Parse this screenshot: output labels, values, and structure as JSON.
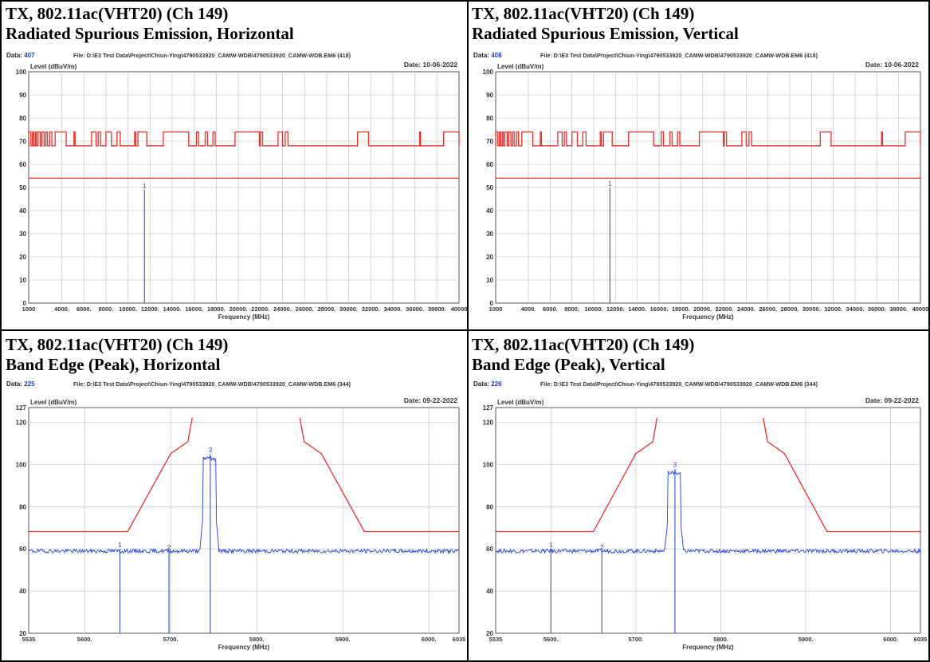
{
  "panels": [
    {
      "title1": "TX, 802.11ac(VHT20) (Ch 149)",
      "title2": "Radiated Spurious Emission, Horizontal",
      "data_no": "407",
      "file": "File: D:\\E3 Test Data\\Project\\Chiun-Ying\\4790533920_CAMW-WDB\\4790533920_CAMW-WDB.EM6 (418)",
      "date": "Date: 10-06-2022"
    },
    {
      "title1": "TX, 802.11ac(VHT20) (Ch 149)",
      "title2": "Radiated Spurious Emission, Vertical",
      "data_no": "408",
      "file": "File: D:\\E3 Test Data\\Project\\Chiun-Ying\\4790533920_CAMW-WDB\\4790533920_CAMW-WDB.EM6 (418)",
      "date": "Date: 10-06-2022"
    },
    {
      "title1": "TX, 802.11ac(VHT20) (Ch 149)",
      "title2": "Band Edge (Peak), Horizontal",
      "data_no": "225",
      "file": "File: D:\\E3 Test Data\\Project\\Chiun-Ying\\4790533920_CAMW-WDB\\4790533920_CAMW-WDB.EM6 (344)",
      "date": "Date: 09-22-2022"
    },
    {
      "title1": "TX, 802.11ac(VHT20) (Ch 149)",
      "title2": "Band Edge (Peak), Vertical",
      "data_no": "226",
      "file": "File: D:\\E3 Test Data\\Project\\Chiun-Ying\\4790533920_CAMW-WDB\\4790533920_CAMW-WDB.EM6 (344)",
      "date": "Date: 09-22-2022"
    }
  ],
  "chart_data": [
    {
      "type": "line",
      "data_label": "Data:",
      "ylabel": "Level (dBuV/m)",
      "xlabel": "Frequency (MHz)",
      "xlim": [
        1000,
        40000
      ],
      "ylim": [
        0,
        100
      ],
      "y_ticks": [
        0,
        10,
        20,
        30,
        40,
        50,
        60,
        70,
        80,
        90,
        100
      ],
      "x_ticks": [
        1000,
        4000,
        6000,
        8000,
        10000,
        12000,
        14000,
        16000,
        18000,
        20000,
        22000,
        24000,
        26000,
        28000,
        30000,
        32000,
        34000,
        36000,
        38000,
        40000
      ],
      "x_tick_labels": [
        "1000",
        "4000.",
        "6000.",
        "8000.",
        "10000.",
        "12000.",
        "14000.",
        "16000.",
        "18000.",
        "20000.",
        "22000.",
        "24000.",
        "26000.",
        "28000.",
        "30000.",
        "32000.",
        "34000.",
        "36000.",
        "38000.",
        "40000"
      ],
      "grid": true,
      "limit_line": 54,
      "markers": [
        {
          "label": "1",
          "x": 11490,
          "y": 49
        }
      ],
      "restricted_mask": {
        "low": 68,
        "high": 74,
        "high_bands": [
          [
            1000,
            1200
          ],
          [
            1350,
            1450
          ],
          [
            1600,
            1700
          ],
          [
            1850,
            2050
          ],
          [
            2200,
            2400
          ],
          [
            2550,
            2700
          ],
          [
            2900,
            3100
          ],
          [
            3400,
            4400
          ],
          [
            5100,
            5200
          ],
          [
            6700,
            7100
          ],
          [
            7300,
            7500
          ],
          [
            8000,
            8500
          ],
          [
            9000,
            9300
          ],
          [
            10600,
            10700
          ],
          [
            10900,
            11700
          ],
          [
            13200,
            15500
          ],
          [
            16200,
            16400
          ],
          [
            17000,
            17200
          ],
          [
            17700,
            17900
          ],
          [
            19700,
            21900
          ],
          [
            22000,
            22200
          ],
          [
            23600,
            24000
          ],
          [
            24250,
            24500
          ],
          [
            30800,
            31800
          ],
          [
            36430,
            36520
          ],
          [
            38600,
            40000
          ]
        ]
      }
    },
    {
      "type": "line",
      "data_label": "Data:",
      "ylabel": "Level (dBuV/m)",
      "xlabel": "Frequency (MHz)",
      "xlim": [
        1000,
        40000
      ],
      "ylim": [
        0,
        100
      ],
      "y_ticks": [
        0,
        10,
        20,
        30,
        40,
        50,
        60,
        70,
        80,
        90,
        100
      ],
      "x_ticks": [
        1000,
        4000,
        6000,
        8000,
        10000,
        12000,
        14000,
        16000,
        18000,
        20000,
        22000,
        24000,
        26000,
        28000,
        30000,
        32000,
        34000,
        36000,
        38000,
        40000
      ],
      "x_tick_labels": [
        "1000",
        "4000.",
        "6000.",
        "8000.",
        "10000.",
        "12000.",
        "14000.",
        "16000.",
        "18000.",
        "20000.",
        "22000.",
        "24000.",
        "26000.",
        "28000.",
        "30000.",
        "32000.",
        "34000.",
        "36000.",
        "38000.",
        "40000"
      ],
      "grid": true,
      "limit_line": 54,
      "markers": [
        {
          "label": "1",
          "x": 11490,
          "y": 50
        }
      ],
      "restricted_mask": {
        "low": 68,
        "high": 74,
        "high_bands": [
          [
            1000,
            1200
          ],
          [
            1350,
            1450
          ],
          [
            1600,
            1700
          ],
          [
            1850,
            2050
          ],
          [
            2200,
            2400
          ],
          [
            2550,
            2700
          ],
          [
            2900,
            3100
          ],
          [
            3400,
            4400
          ],
          [
            5100,
            5200
          ],
          [
            6700,
            7100
          ],
          [
            7300,
            7500
          ],
          [
            8000,
            8500
          ],
          [
            9000,
            9300
          ],
          [
            10600,
            10700
          ],
          [
            10900,
            11700
          ],
          [
            13200,
            15500
          ],
          [
            16200,
            16400
          ],
          [
            17000,
            17200
          ],
          [
            17700,
            17900
          ],
          [
            19700,
            21900
          ],
          [
            22000,
            22200
          ],
          [
            23600,
            24000
          ],
          [
            24250,
            24500
          ],
          [
            30800,
            31800
          ],
          [
            36430,
            36520
          ],
          [
            38600,
            40000
          ]
        ]
      }
    },
    {
      "type": "line",
      "data_label": "Data:",
      "ylabel": "Level (dBuV/m)",
      "xlabel": "Frequency (MHz)",
      "xlim": [
        5535,
        6035
      ],
      "ylim": [
        20,
        127
      ],
      "y_ticks": [
        20,
        40,
        60,
        80,
        100,
        120,
        127
      ],
      "x_ticks": [
        5535,
        5600,
        5700,
        5800,
        5900,
        6000,
        6035
      ],
      "x_tick_labels": [
        "5535",
        "5600.",
        "5700.",
        "5800.",
        "5900.",
        "6000.",
        "6035"
      ],
      "grid": true,
      "mask": [
        [
          5535,
          68.2
        ],
        [
          5650,
          68.2
        ],
        [
          5700,
          105.2
        ],
        [
          5720,
          110.8
        ],
        [
          5725,
          122.2
        ],
        null,
        [
          5850,
          122.2
        ],
        [
          5855,
          110.8
        ],
        [
          5875,
          105.2
        ],
        [
          5925,
          68.2
        ],
        [
          6035,
          68.2
        ]
      ],
      "noise_floor": 59,
      "carrier": {
        "start": 5737,
        "end": 5753,
        "level": 103
      },
      "markers": [
        {
          "label": "1",
          "x": 5641,
          "y": 60
        },
        {
          "label": "2",
          "x": 5698,
          "y": 59
        },
        {
          "label": "3",
          "x": 5746,
          "y": 105
        }
      ]
    },
    {
      "type": "line",
      "data_label": "Data:",
      "ylabel": "Level (dBuV/m)",
      "xlabel": "Frequency (MHz)",
      "xlim": [
        5535,
        6035
      ],
      "ylim": [
        20,
        127
      ],
      "y_ticks": [
        20,
        40,
        60,
        80,
        100,
        120,
        127
      ],
      "x_ticks": [
        5535,
        5600,
        5700,
        5800,
        5900,
        6000,
        6035
      ],
      "x_tick_labels": [
        "5535",
        "5600.",
        "5700.",
        "5800.",
        "5900.",
        "6000.",
        "6035"
      ],
      "grid": true,
      "mask": [
        [
          5535,
          68.2
        ],
        [
          5650,
          68.2
        ],
        [
          5700,
          105.2
        ],
        [
          5720,
          110.8
        ],
        [
          5725,
          122.2
        ],
        null,
        [
          5850,
          122.2
        ],
        [
          5855,
          110.8
        ],
        [
          5875,
          105.2
        ],
        [
          5925,
          68.2
        ],
        [
          6035,
          68.2
        ]
      ],
      "noise_floor": 59,
      "carrier": {
        "start": 5737,
        "end": 5753,
        "level": 96
      },
      "markers": [
        {
          "label": "1",
          "x": 5600,
          "y": 60
        },
        {
          "label": "2",
          "x": 5660,
          "y": 59
        },
        {
          "label": "3",
          "x": 5746,
          "y": 98
        }
      ]
    }
  ],
  "colors": {
    "limit": "#e8302a",
    "trace": "#1f3fe0",
    "grid": "#cccccc",
    "label_blue": "#1a3adf"
  }
}
